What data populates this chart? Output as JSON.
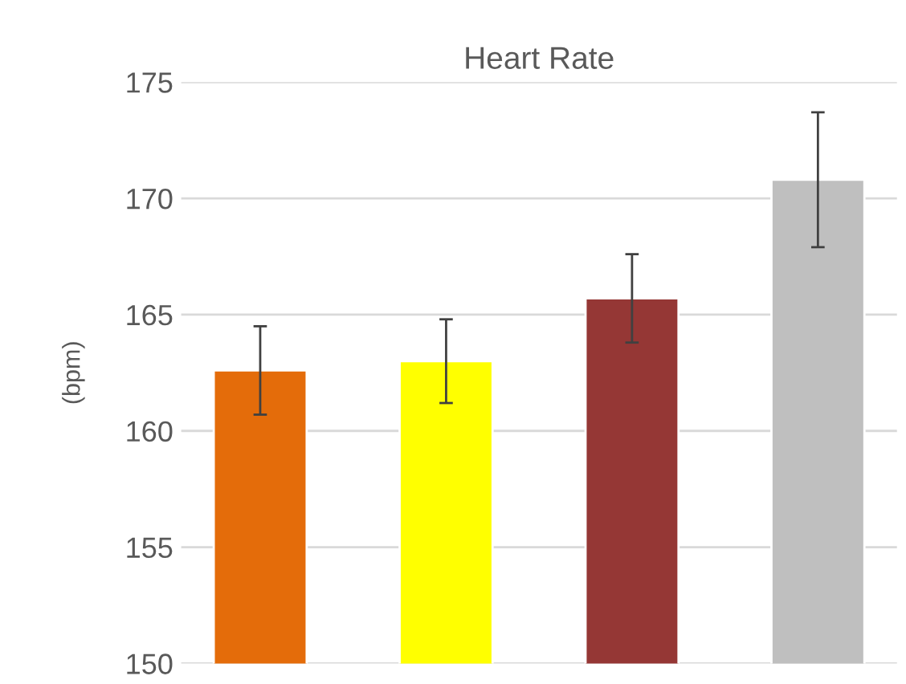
{
  "chart_data": {
    "type": "bar",
    "title": "Heart Rate",
    "ylabel": "(bpm)",
    "categories": [
      null,
      null,
      null,
      null
    ],
    "values": [
      162.6,
      163.0,
      165.7,
      170.8
    ],
    "errors": [
      1.9,
      1.8,
      1.9,
      2.9
    ],
    "colors": [
      "#e46c0a",
      "#ffff00",
      "#953735",
      "#bfbfbf"
    ],
    "ylim": [
      150,
      175
    ],
    "yticks": [
      150,
      155,
      160,
      165,
      170,
      175
    ],
    "grid": "y"
  }
}
